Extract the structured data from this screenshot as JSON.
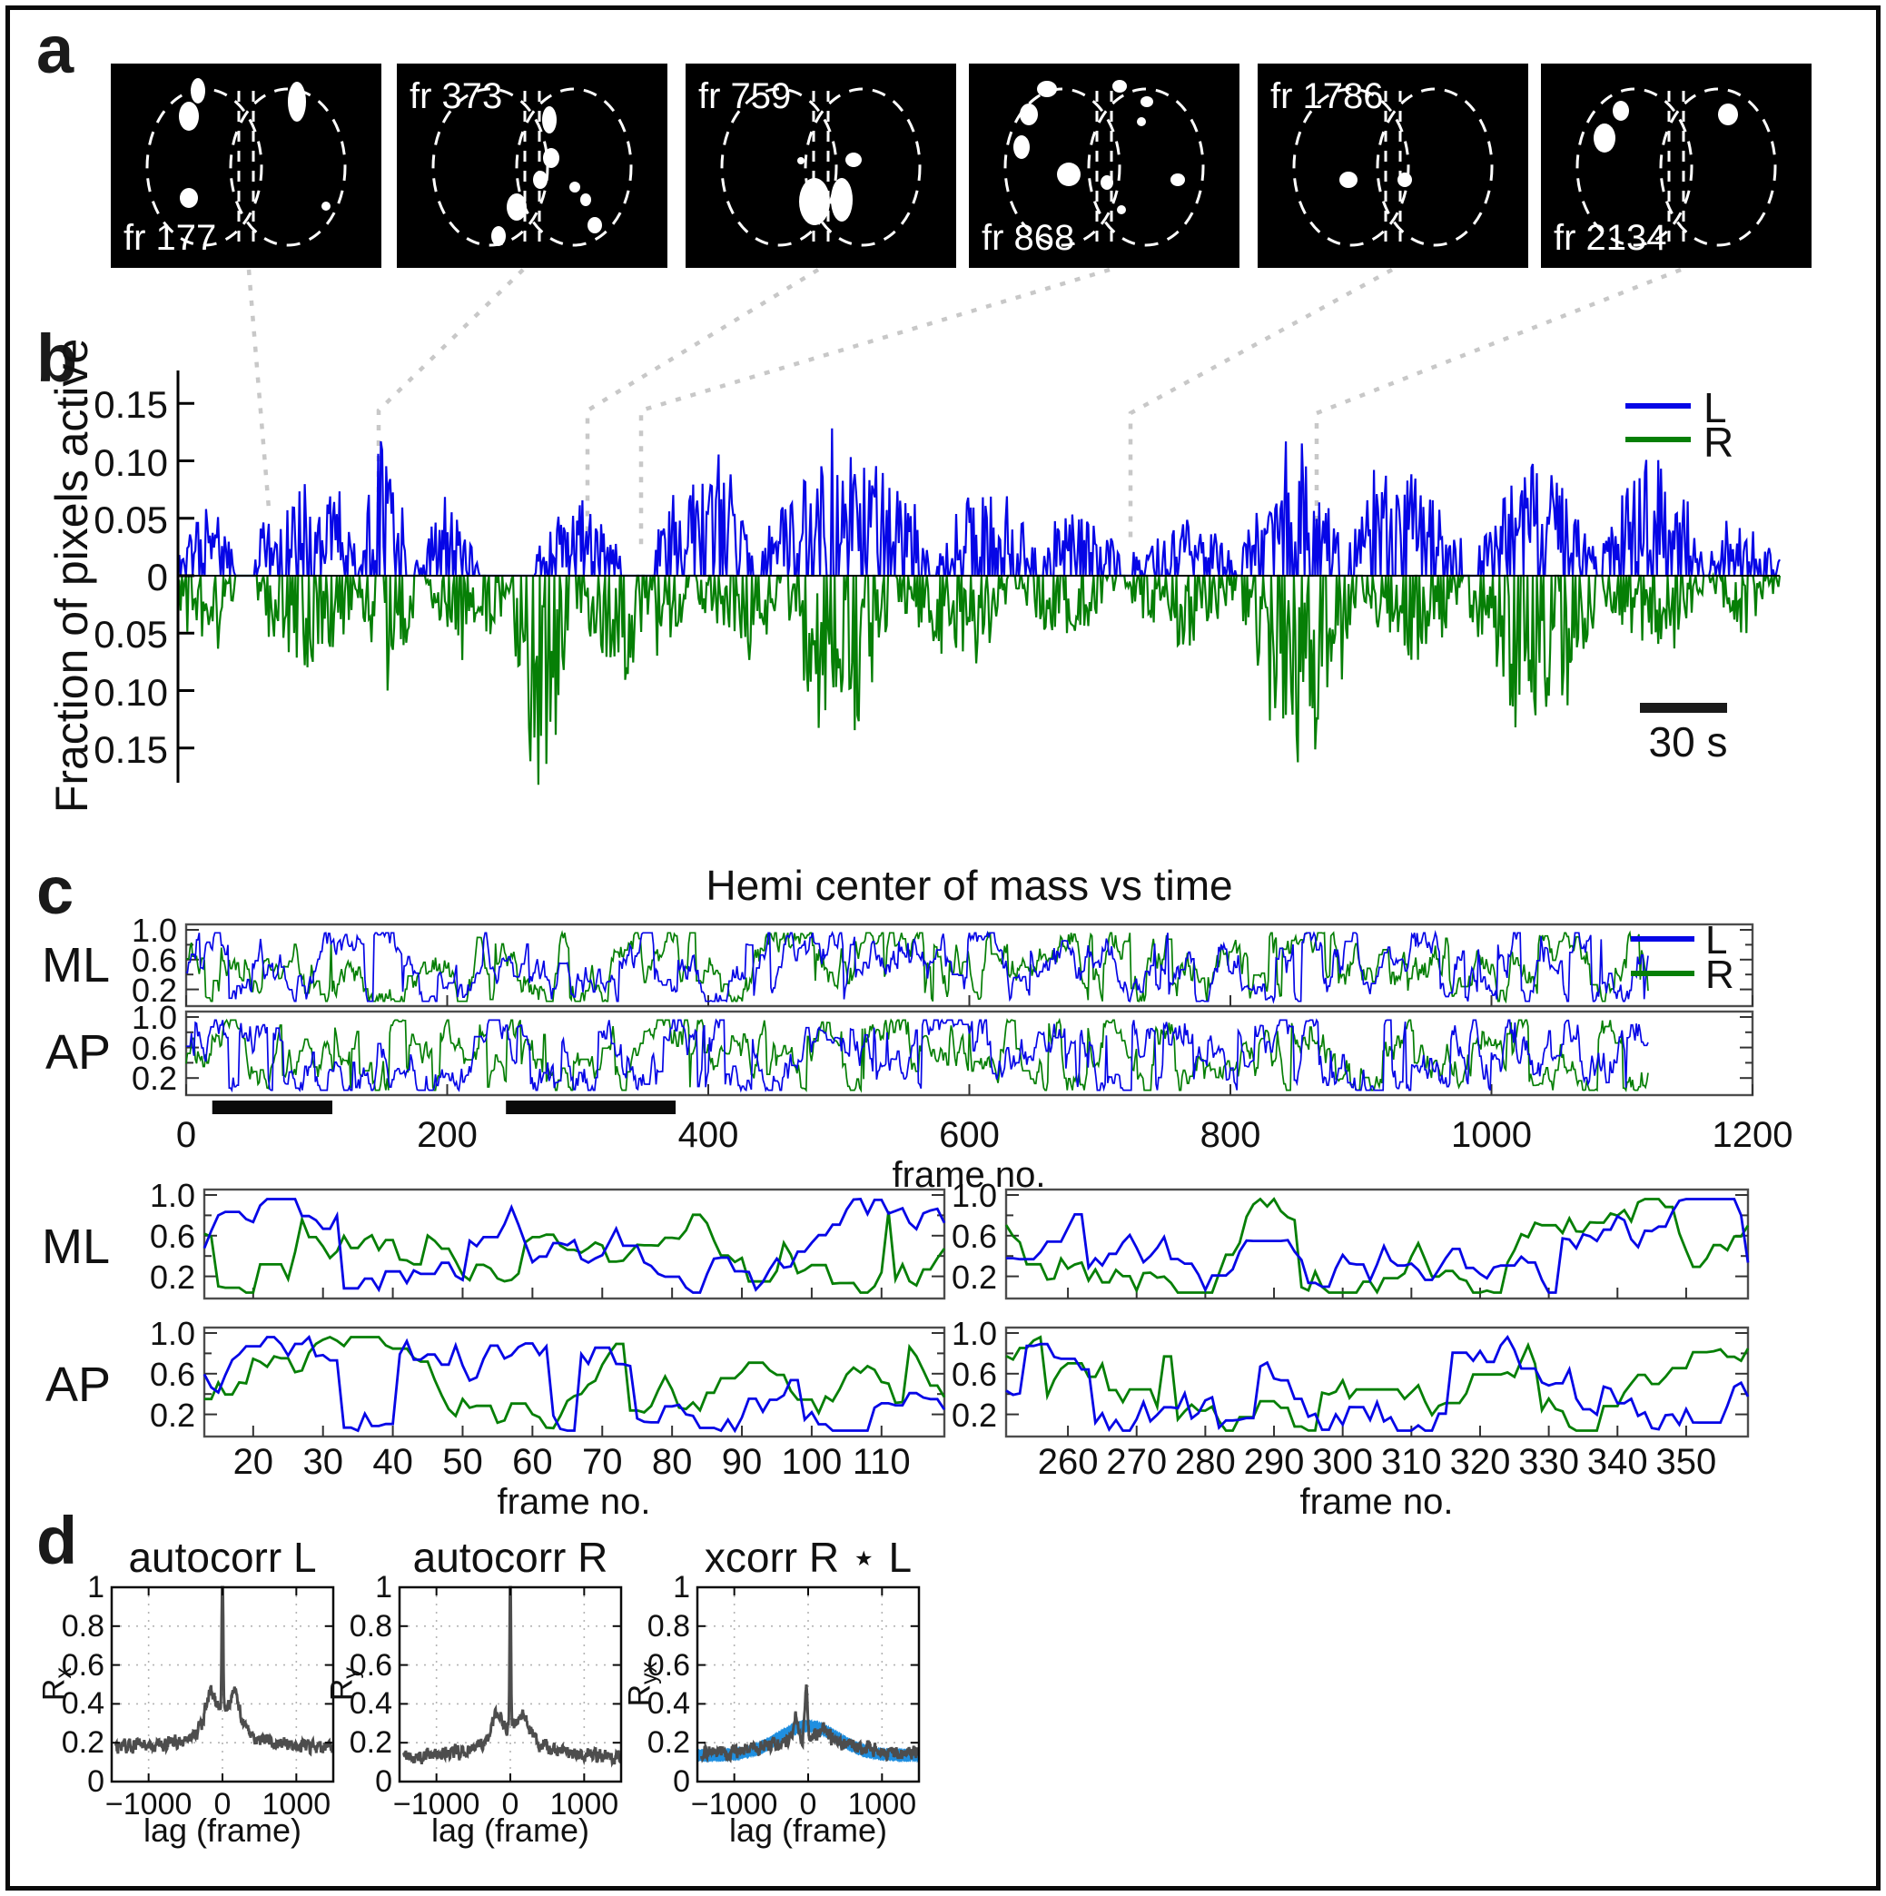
{
  "panel_a": {
    "label": "a",
    "frames": [
      {
        "label": "fr 177",
        "label_pos": "bottom",
        "blobs": [
          [
            96,
            30,
            8,
            14
          ],
          [
            86,
            58,
            11,
            16
          ],
          [
            205,
            42,
            10,
            22
          ],
          [
            86,
            148,
            10,
            11
          ],
          [
            237,
            157,
            5,
            5
          ]
        ]
      },
      {
        "label": "fr 373",
        "label_pos": "top",
        "blobs": [
          [
            168,
            62,
            8,
            15
          ],
          [
            170,
            104,
            9,
            11
          ],
          [
            158,
            128,
            8,
            10
          ],
          [
            132,
            158,
            11,
            15
          ],
          [
            112,
            190,
            8,
            11
          ],
          [
            196,
            136,
            6,
            6
          ],
          [
            208,
            150,
            6,
            7
          ],
          [
            218,
            178,
            8,
            9
          ]
        ]
      },
      {
        "label": "fr 759",
        "label_pos": "top",
        "blobs": [
          [
            127,
            107,
            4,
            4
          ],
          [
            185,
            106,
            9,
            8
          ],
          [
            142,
            152,
            17,
            26
          ],
          [
            172,
            150,
            12,
            24
          ]
        ]
      },
      {
        "label": "fr 868",
        "label_pos": "bottom",
        "blobs": [
          [
            86,
            28,
            11,
            9
          ],
          [
            66,
            56,
            10,
            12
          ],
          [
            58,
            92,
            9,
            13
          ],
          [
            110,
            122,
            13,
            13
          ],
          [
            152,
            131,
            7,
            8
          ],
          [
            230,
            128,
            8,
            7
          ],
          [
            168,
            161,
            5,
            5
          ],
          [
            166,
            25,
            8,
            7
          ],
          [
            196,
            42,
            7,
            6
          ],
          [
            190,
            64,
            5,
            5
          ]
        ]
      },
      {
        "label": "fr 1786",
        "label_pos": "top",
        "blobs": [
          [
            100,
            128,
            10,
            9
          ],
          [
            162,
            128,
            8,
            8
          ]
        ]
      },
      {
        "label": "fr 2134",
        "label_pos": "bottom",
        "blobs": [
          [
            88,
            52,
            9,
            11
          ],
          [
            70,
            82,
            12,
            16
          ],
          [
            206,
            56,
            11,
            12
          ]
        ]
      }
    ]
  },
  "panel_b": {
    "label": "b",
    "ylabel": "Fraction of pixels active",
    "yticks": [
      "0.15",
      "0.10",
      "0.05",
      "0",
      "0.05",
      "0.10",
      "0.15"
    ],
    "legend": [
      {
        "name": "L",
        "color": "#0606E6"
      },
      {
        "name": "R",
        "color": "#067F06"
      }
    ],
    "scalebar_label": "30 s"
  },
  "panel_c": {
    "label": "c",
    "title": "Hemi center of mass vs time",
    "row_labels": [
      "ML",
      "AP"
    ],
    "xlabel": "frame no.",
    "yticks": [
      "1.0",
      "0.6",
      "0.2"
    ],
    "legend": [
      {
        "name": "L",
        "color": "#0606E6"
      },
      {
        "name": "R",
        "color": "#067F06"
      }
    ]
  },
  "panel_d": {
    "label": "d",
    "plots": [
      {
        "title": "autocorr L",
        "ylabel_base": "R",
        "ylabel_sub": "x",
        "xlabel": "lag (frame)"
      },
      {
        "title": "autocorr R",
        "ylabel_base": "R",
        "ylabel_sub": "y",
        "xlabel": "lag (frame)"
      },
      {
        "title": "xcorr R ⋆ L",
        "ylabel_base": "R",
        "ylabel_sub": "yx",
        "xlabel": "lag (frame)"
      }
    ],
    "yticks": [
      "1",
      "0.8",
      "0.6",
      "0.4",
      "0.2",
      "0"
    ],
    "xticks": [
      "−1000",
      "0",
      "1000"
    ]
  },
  "chart_data": [
    {
      "id": "b_fraction_of_pixels_active",
      "type": "line",
      "ylabel": "Fraction of pixels active",
      "ylim": [
        -0.19,
        0.17
      ],
      "ytick_values": [
        0.15,
        0.1,
        0.05,
        0,
        -0.05,
        -0.1,
        -0.15
      ],
      "n_frames": 1200,
      "scalebar": "30 s",
      "legend_position": "top-right",
      "observed_peaks": {
        "L_max": 0.112,
        "R_max": 0.19
      },
      "series": [
        {
          "name": "L",
          "color": "#0606E6",
          "sign": 1,
          "seed": 11,
          "bursts": [
            [
              0,
              42,
              0.055
            ],
            [
              58,
              138,
              0.08
            ],
            [
              138,
              172,
              0.112
            ],
            [
              178,
              225,
              0.055
            ],
            [
              268,
              332,
              0.062
            ],
            [
              358,
              432,
              0.09
            ],
            [
              438,
              562,
              0.105
            ],
            [
              568,
              642,
              0.082
            ],
            [
              648,
              705,
              0.06
            ],
            [
              715,
              792,
              0.05
            ],
            [
              798,
              872,
              0.095
            ],
            [
              878,
              962,
              0.1
            ],
            [
              975,
              1062,
              0.092
            ],
            [
              1068,
              1142,
              0.105
            ],
            [
              1148,
              1200,
              0.05
            ]
          ]
        },
        {
          "name": "R",
          "color": "#067F06",
          "sign": -1,
          "seed": 77,
          "bursts": [
            [
              0,
              42,
              0.06
            ],
            [
              58,
              138,
              0.075
            ],
            [
              138,
              178,
              0.1
            ],
            [
              186,
              250,
              0.06
            ],
            [
              252,
              292,
              0.19
            ],
            [
              298,
              382,
              0.09
            ],
            [
              388,
              452,
              0.062
            ],
            [
              458,
              532,
              0.145
            ],
            [
              538,
              622,
              0.072
            ],
            [
              628,
              702,
              0.05
            ],
            [
              710,
              792,
              0.06
            ],
            [
              798,
              882,
              0.13
            ],
            [
              888,
              962,
              0.072
            ],
            [
              968,
              1062,
              0.12
            ],
            [
              1068,
              1142,
              0.06
            ],
            [
              1148,
              1200,
              0.04
            ]
          ]
        }
      ]
    },
    {
      "id": "c_hemi_center_of_mass",
      "type": "line",
      "title": "Hemi center of mass vs time",
      "xlabel": "frame no.",
      "xlim": [
        0,
        1220
      ],
      "xticks": [
        0,
        200,
        400,
        600,
        800,
        1000,
        1200
      ],
      "ylim": [
        0,
        1
      ],
      "ytick_values": [
        1.0,
        0.6,
        0.2
      ],
      "n_points": 1121,
      "rows": [
        "ML",
        "AP"
      ],
      "series": [
        {
          "name": "L",
          "color": "#0606E6",
          "seeds": {
            "ML": 21,
            "AP": 23
          }
        },
        {
          "name": "R",
          "color": "#067F06",
          "seeds": {
            "ML": 22,
            "AP": 24
          }
        }
      ],
      "zoom_region_bars": [
        [
          20,
          112
        ],
        [
          245,
          375
        ]
      ],
      "zoom_windows": [
        {
          "xlim": [
            13,
            119
          ],
          "xticks": [
            20,
            30,
            40,
            50,
            60,
            70,
            80,
            90,
            100,
            110
          ]
        },
        {
          "xlim": [
            251,
            359
          ],
          "xticks": [
            260,
            270,
            280,
            290,
            300,
            310,
            320,
            330,
            340,
            350
          ]
        }
      ]
    },
    {
      "id": "d_correlations",
      "type": "line",
      "xlim": [
        -1500,
        1500
      ],
      "ylim": [
        0,
        1
      ],
      "xtick_values": [
        -1000,
        0,
        1000
      ],
      "ytick_values": [
        1,
        0.8,
        0.6,
        0.4,
        0.2,
        0
      ],
      "grid": "dotted",
      "plots": [
        {
          "title": "autocorr L",
          "color": "#4D4D4D",
          "seed": 31,
          "kind": "auto",
          "base": 0.17,
          "broad": [
            0.06,
            900
          ],
          "mid": [
            0.15,
            300
          ],
          "shoulder": [
            0.13,
            170,
            75
          ],
          "spike": 1.0
        },
        {
          "title": "autocorr R",
          "color": "#4D4D4D",
          "seed": 41,
          "kind": "auto",
          "base": 0.125,
          "broad": [
            0.05,
            900
          ],
          "mid": [
            0.11,
            320
          ],
          "shoulder": [
            0.09,
            190,
            90
          ],
          "spike": 1.0
        },
        {
          "title": "xcorr R ⋆ L",
          "color": "#4D4D4D",
          "seed": 51,
          "kind": "xcorr",
          "base": 0.15,
          "broad": [
            0.08,
            650
          ],
          "peaks": [
            [
              -25,
              26,
              0.25
            ],
            [
              -165,
              40,
              0.13
            ],
            [
              190,
              80,
              0.05
            ]
          ],
          "band": {
            "color": "#1F8FE0",
            "center_base": 0.135,
            "center_amp": 0.15,
            "center_sigma": 560,
            "half_width": 0.021,
            "seed": 61
          },
          "observed_peaks": {
            "main": 0.54,
            "secondary": 0.41
          }
        }
      ]
    }
  ]
}
